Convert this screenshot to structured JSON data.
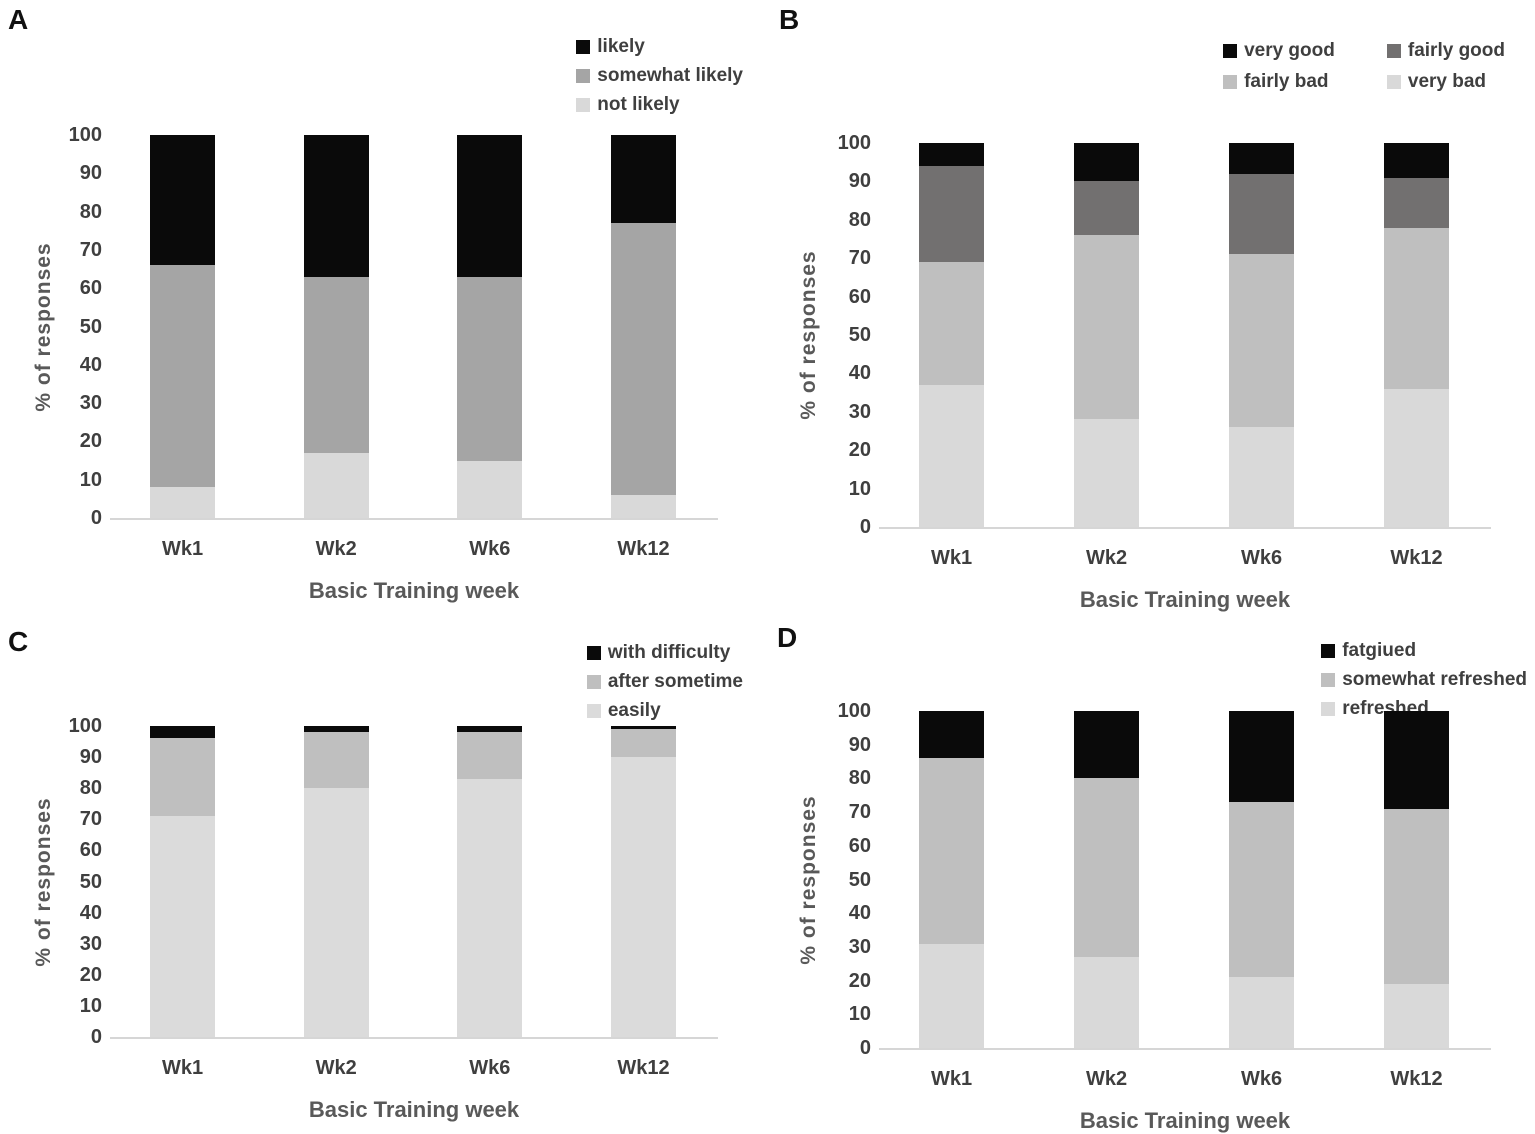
{
  "chart_data": [
    {
      "type": "bar",
      "stacked": true,
      "panel": "A",
      "categories": [
        "Wk1",
        "Wk2",
        "Wk6",
        "Wk12"
      ],
      "series": [
        {
          "name": "not likely",
          "color": "#d9d9d9",
          "values": [
            8,
            17,
            15,
            6
          ]
        },
        {
          "name": "somewhat likely",
          "color": "#a5a5a5",
          "values": [
            58,
            46,
            48,
            71
          ]
        },
        {
          "name": "likely",
          "color": "#0a0a0a",
          "values": [
            34,
            37,
            37,
            23
          ]
        }
      ],
      "legend": [
        {
          "label": "likely",
          "color": "#0a0a0a"
        },
        {
          "label": "somewhat likely",
          "color": "#a5a5a5"
        },
        {
          "label": "not likely",
          "color": "#d9d9d9"
        }
      ],
      "legend_position": "top-right",
      "xlabel": "Basic Training week",
      "ylabel": "% of responses",
      "ylim": [
        0,
        100
      ],
      "yticks": [
        0,
        10,
        20,
        30,
        40,
        50,
        60,
        70,
        80,
        90,
        100
      ],
      "grid": false
    },
    {
      "type": "bar",
      "stacked": true,
      "panel": "B",
      "categories": [
        "Wk1",
        "Wk2",
        "Wk6",
        "Wk12"
      ],
      "series": [
        {
          "name": "very bad",
          "color": "#d9d9d9",
          "values": [
            37,
            28,
            26,
            36
          ]
        },
        {
          "name": "fairly bad",
          "color": "#bfbfbf",
          "values": [
            32,
            48,
            45,
            42
          ]
        },
        {
          "name": "fairly good",
          "color": "#727070",
          "values": [
            25,
            14,
            21,
            13
          ]
        },
        {
          "name": "very good",
          "color": "#0a0a0a",
          "values": [
            6,
            10,
            8,
            9
          ]
        }
      ],
      "legend": [
        {
          "label": "very good",
          "color": "#0a0a0a"
        },
        {
          "label": "fairly good",
          "color": "#727070"
        },
        {
          "label": "fairly bad",
          "color": "#bfbfbf"
        },
        {
          "label": "very bad",
          "color": "#d9d9d9"
        }
      ],
      "legend_position": "top-right-2-columns",
      "xlabel": "Basic Training week",
      "ylabel": "% of responses",
      "ylim": [
        0,
        100
      ],
      "yticks": [
        0,
        10,
        20,
        30,
        40,
        50,
        60,
        70,
        80,
        90,
        100
      ],
      "grid": false
    },
    {
      "type": "bar",
      "stacked": true,
      "panel": "C",
      "categories": [
        "Wk1",
        "Wk2",
        "Wk6",
        "Wk12"
      ],
      "series": [
        {
          "name": "easily",
          "color": "#dbdbdb",
          "values": [
            71,
            80,
            83,
            90
          ]
        },
        {
          "name": "after sometime",
          "color": "#bfbfbf",
          "values": [
            25,
            18,
            15,
            9
          ]
        },
        {
          "name": "with difficulty",
          "color": "#0a0a0a",
          "values": [
            4,
            2,
            2,
            1
          ]
        }
      ],
      "legend": [
        {
          "label": "with difficulty",
          "color": "#0a0a0a"
        },
        {
          "label": "after sometime",
          "color": "#bfbfbf"
        },
        {
          "label": "easily",
          "color": "#dbdbdb"
        }
      ],
      "legend_position": "top-right",
      "xlabel": "Basic Training week",
      "ylabel": "% of responses",
      "ylim": [
        0,
        100
      ],
      "yticks": [
        0,
        10,
        20,
        30,
        40,
        50,
        60,
        70,
        80,
        90,
        100
      ],
      "grid": false
    },
    {
      "type": "bar",
      "stacked": true,
      "panel": "D",
      "categories": [
        "Wk1",
        "Wk2",
        "Wk6",
        "Wk12"
      ],
      "series": [
        {
          "name": "refreshed",
          "color": "#d9d9d9",
          "values": [
            31,
            27,
            21,
            19
          ]
        },
        {
          "name": "somewhat refreshed",
          "color": "#bfbfbf",
          "values": [
            55,
            53,
            52,
            52
          ]
        },
        {
          "name": "fatgiued",
          "color": "#0a0a0a",
          "values": [
            14,
            20,
            27,
            29
          ]
        }
      ],
      "legend": [
        {
          "label": "fatgiued",
          "color": "#0a0a0a"
        },
        {
          "label": "somewhat refreshed",
          "color": "#bfbfbf"
        },
        {
          "label": "refreshed",
          "color": "#d9d9d9"
        }
      ],
      "legend_position": "top-right",
      "xlabel": "Basic Training week",
      "ylabel": "% of responses",
      "ylim": [
        0,
        100
      ],
      "yticks": [
        0,
        10,
        20,
        30,
        40,
        50,
        60,
        70,
        80,
        90,
        100
      ],
      "grid": false
    }
  ]
}
